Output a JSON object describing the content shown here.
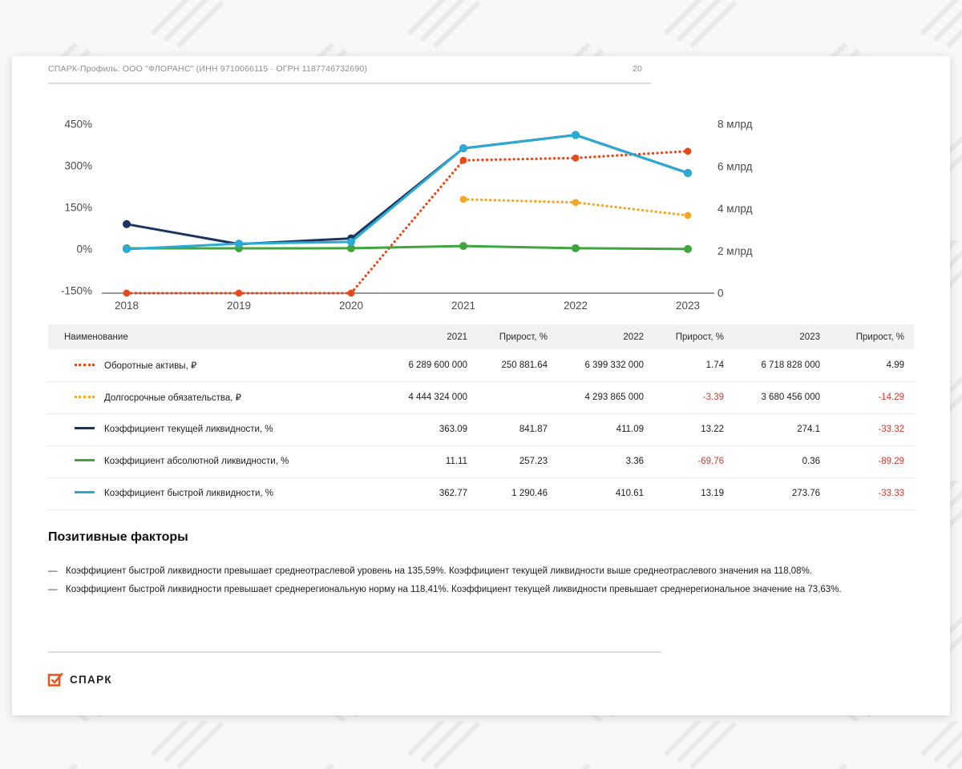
{
  "page": {
    "header": {
      "title": "СПАРК-Профиль: ООО \"ФЛОРАНС\" (ИНН 9710066115 · ОГРН 1187746732690)",
      "page_number": "20"
    },
    "footer_logo": "СПАРК"
  },
  "chart_data": {
    "type": "line",
    "x": [
      "2018",
      "2019",
      "2020",
      "2021",
      "2022",
      "2023"
    ],
    "left_axis": {
      "unit": "%",
      "range": [
        -150,
        450
      ],
      "ticks": [
        {
          "label": "450%",
          "value": 450
        },
        {
          "label": "300%",
          "value": 300
        },
        {
          "label": "150%",
          "value": 150
        },
        {
          "label": "0%",
          "value": 0
        },
        {
          "label": "-150%",
          "value": -150
        }
      ]
    },
    "right_axis": {
      "unit": "млрд",
      "range": [
        0,
        8
      ],
      "ticks": [
        {
          "label": "8 млрд",
          "value": 8
        },
        {
          "label": "6 млрд",
          "value": 6
        },
        {
          "label": "4 млрд",
          "value": 4
        },
        {
          "label": "2 млрд",
          "value": 2
        },
        {
          "label": "0",
          "value": 0
        }
      ]
    },
    "grid": false,
    "legend_position": "table-below",
    "series": [
      {
        "name": "Оборотные активы, ₽",
        "axis": "right",
        "style": "dotted",
        "color": "#E5491C",
        "values": [
          0.002,
          0.002,
          0.003,
          6.2896,
          6.3993,
          6.7188
        ]
      },
      {
        "name": "Долгосрочные обязательства, ₽",
        "axis": "right",
        "style": "dotted",
        "color": "#F2A727",
        "values": [
          null,
          null,
          null,
          4.4443,
          4.2939,
          3.6805
        ]
      },
      {
        "name": "Коэффициент текущей ликвидности, %",
        "axis": "left",
        "style": "solid",
        "color": "#1A3560",
        "values": [
          90,
          18,
          38.6,
          363.09,
          411.09,
          274.1
        ]
      },
      {
        "name": "Коэффициент абсолютной ликвидности, %",
        "axis": "left",
        "style": "solid",
        "color": "#3FA53C",
        "values": [
          3,
          3,
          3.1,
          11.11,
          3.36,
          0.36
        ]
      },
      {
        "name": "Коэффициент быстрой ликвидности, %",
        "axis": "left",
        "style": "solid",
        "color": "#2BAAD4",
        "values": [
          0,
          20,
          26.1,
          362.77,
          410.61,
          273.76
        ]
      }
    ]
  },
  "table": {
    "columns": [
      "Наименование",
      "2021",
      "Прирост, %",
      "2022",
      "Прирост, %",
      "2023",
      "Прирост, %"
    ],
    "rows": [
      {
        "name": "Оборотные активы, ₽",
        "color": "#E5491C",
        "style": "dotted",
        "cells": [
          "6 289 600 000",
          "250 881.64",
          "6 399 332 000",
          "1.74",
          "6 718 828 000",
          "4.99"
        ]
      },
      {
        "name": "Долгосрочные обязательства, ₽",
        "color": "#F2A727",
        "style": "dotted",
        "cells": [
          "4 444 324 000",
          "",
          "4 293 865 000",
          "-3.39",
          "3 680 456 000",
          "-14.29"
        ]
      },
      {
        "name": "Коэффициент текущей ликвидности, %",
        "color": "#1A3560",
        "style": "solid",
        "cells": [
          "363.09",
          "841.87",
          "411.09",
          "13.22",
          "274.1",
          "-33.32"
        ]
      },
      {
        "name": "Коэффициент абсолютной ликвидности, %",
        "color": "#3FA53C",
        "style": "solid",
        "cells": [
          "11.11",
          "257.23",
          "3.36",
          "-69.76",
          "0.36",
          "-89.29"
        ]
      },
      {
        "name": "Коэффициент быстрой ликвидности, %",
        "color": "#2BAAD4",
        "style": "solid",
        "cells": [
          "362.77",
          "1 290.46",
          "410.61",
          "13.19",
          "273.76",
          "-33.33"
        ]
      }
    ]
  },
  "factors": {
    "title": "Позитивные факторы",
    "items": [
      "Коэффициент быстрой ликвидности превышает среднеотраслевой уровень на 135,59%. Коэффициент текущей ликвидности выше среднеотраслевого значения на 118,08%.",
      "Коэффициент быстрой ликвидности превышает среднерегиональную норму на 118,41%. Коэффициент текущей ликвидности превышает среднерегиональное значение на 73,63%."
    ]
  },
  "colors": {
    "negative_value": "#D03A30",
    "brand_orange": "#E8571F",
    "table_header_bg": "#F1F1F1"
  }
}
